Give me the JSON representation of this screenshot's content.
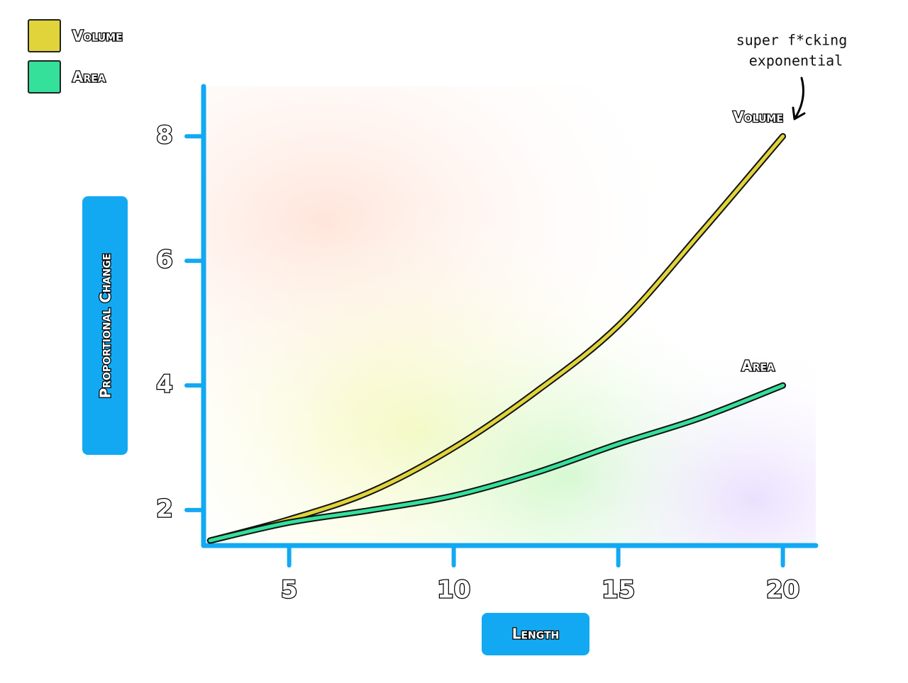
{
  "chart_data": {
    "type": "line",
    "x_label": "Length",
    "y_label": "Proportional Change",
    "annotation": [
      "super f*cking",
      "exponential"
    ],
    "x": [
      2.6,
      5,
      7.5,
      10,
      12.5,
      15,
      17.5,
      20
    ],
    "series": [
      {
        "name": "Volume",
        "color": "#e0d43a",
        "values": [
          1.51,
          1.85,
          2.3,
          3.0,
          3.9,
          4.96,
          6.45,
          8
        ]
      },
      {
        "name": "Area",
        "color": "#34e09a",
        "values": [
          1.51,
          1.8,
          2.0,
          2.23,
          2.6,
          3.06,
          3.48,
          4
        ]
      }
    ],
    "xlim": [
      2.4,
      21
    ],
    "ylim": [
      1.43,
      8.8
    ],
    "xticks": [
      5,
      10,
      15,
      20
    ],
    "yticks": [
      2,
      4,
      6,
      8
    ],
    "axis_color": "#12a9f2",
    "legend": "upper left",
    "grid": false
  }
}
